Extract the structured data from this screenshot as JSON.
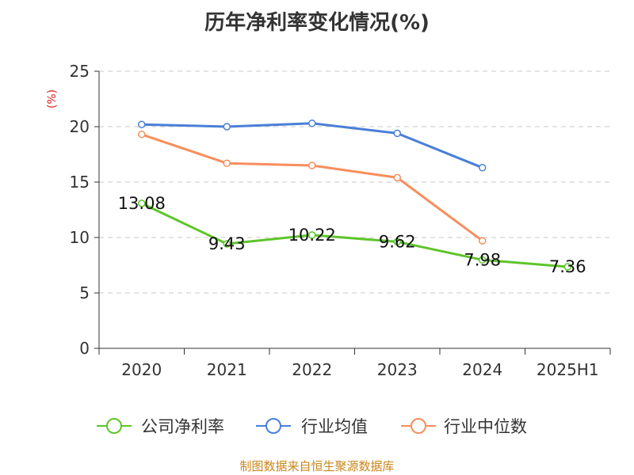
{
  "title": "历年净利率变化情况(%)",
  "source": "制图数据来自恒生聚源数据库",
  "chart_data": {
    "type": "line",
    "title": "历年净利率变化情况(%)",
    "ylabel": "(%)",
    "xlabel": "",
    "categories": [
      "2020",
      "2021",
      "2022",
      "2023",
      "2024",
      "2025H1"
    ],
    "ylim": [
      0,
      25
    ],
    "yticks": [
      0,
      5,
      10,
      15,
      20,
      25
    ],
    "grid": true,
    "legend": "bottom",
    "series": [
      {
        "name": "公司净利率",
        "color": "#5ec42a",
        "values": [
          13.08,
          9.43,
          10.22,
          9.62,
          7.98,
          7.36
        ],
        "labels": [
          "13.08",
          "9.43",
          "10.22",
          "9.62",
          "7.98",
          "7.36"
        ]
      },
      {
        "name": "行业均值",
        "color": "#4a7fd8",
        "values": [
          20.2,
          20.0,
          20.3,
          19.4,
          16.3,
          null
        ]
      },
      {
        "name": "行业中位数",
        "color": "#f78e5c",
        "values": [
          19.3,
          16.7,
          16.5,
          15.4,
          9.7,
          null
        ]
      }
    ]
  }
}
